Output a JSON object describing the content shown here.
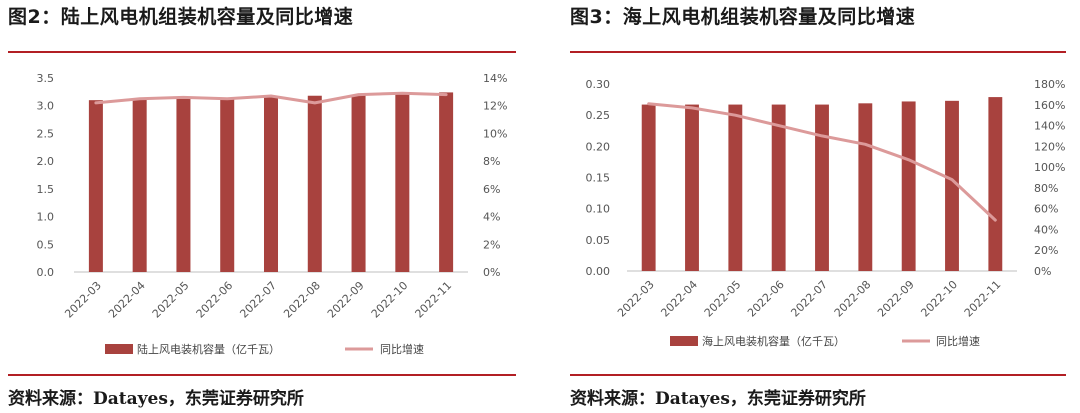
{
  "colors": {
    "bar": "#a8423e",
    "line": "#dc9a9a",
    "rule": "#b21f24",
    "axis": "#bfbfbf"
  },
  "panels": [
    {
      "title": "图2：陆上风电机组装机容量及同比增速",
      "source": "资料来源：Datayes，东莞证券研究所",
      "chart_data": {
        "type": "bar",
        "categories": [
          "2022-03",
          "2022-04",
          "2022-05",
          "2022-06",
          "2022-07",
          "2022-08",
          "2022-09",
          "2022-10",
          "2022-11"
        ],
        "series": [
          {
            "name": "陆上风电装机容量（亿千瓦）",
            "type": "bar",
            "axis": "left",
            "values": [
              3.1,
              3.12,
              3.13,
              3.14,
              3.16,
              3.18,
              3.2,
              3.22,
              3.24
            ]
          },
          {
            "name": "同比增速",
            "type": "line",
            "axis": "right",
            "values": [
              12.2,
              12.5,
              12.6,
              12.5,
              12.7,
              12.2,
              12.8,
              12.9,
              12.8
            ]
          }
        ],
        "y_left": {
          "min": 0,
          "max": 3.5,
          "step": 0.5,
          "decimals": 1,
          "suffix": ""
        },
        "y_right": {
          "min": 0,
          "max": 14,
          "step": 2,
          "decimals": 0,
          "suffix": "%"
        },
        "grid": false,
        "legend": "bottom"
      }
    },
    {
      "title": "图3：海上风电机组装机容量及同比增速",
      "source": "资料来源：Datayes，东莞证券研究所",
      "chart_data": {
        "type": "bar",
        "categories": [
          "2022-03",
          "2022-04",
          "2022-05",
          "2022-06",
          "2022-07",
          "2022-08",
          "2022-09",
          "2022-10",
          "2022-11"
        ],
        "series": [
          {
            "name": "海上风电装机容量（亿千瓦）",
            "type": "bar",
            "axis": "left",
            "values": [
              0.267,
              0.267,
              0.267,
              0.267,
              0.267,
              0.269,
              0.272,
              0.273,
              0.279
            ]
          },
          {
            "name": "同比增速",
            "type": "line",
            "axis": "right",
            "values": [
              161,
              157,
              150,
              140,
              130,
              122,
              107,
              88,
              49
            ]
          }
        ],
        "y_left": {
          "min": 0,
          "max": 0.3,
          "step": 0.05,
          "decimals": 2,
          "suffix": ""
        },
        "y_right": {
          "min": 0,
          "max": 180,
          "step": 20,
          "decimals": 0,
          "suffix": "%"
        },
        "grid": false,
        "legend": "bottom"
      }
    }
  ]
}
